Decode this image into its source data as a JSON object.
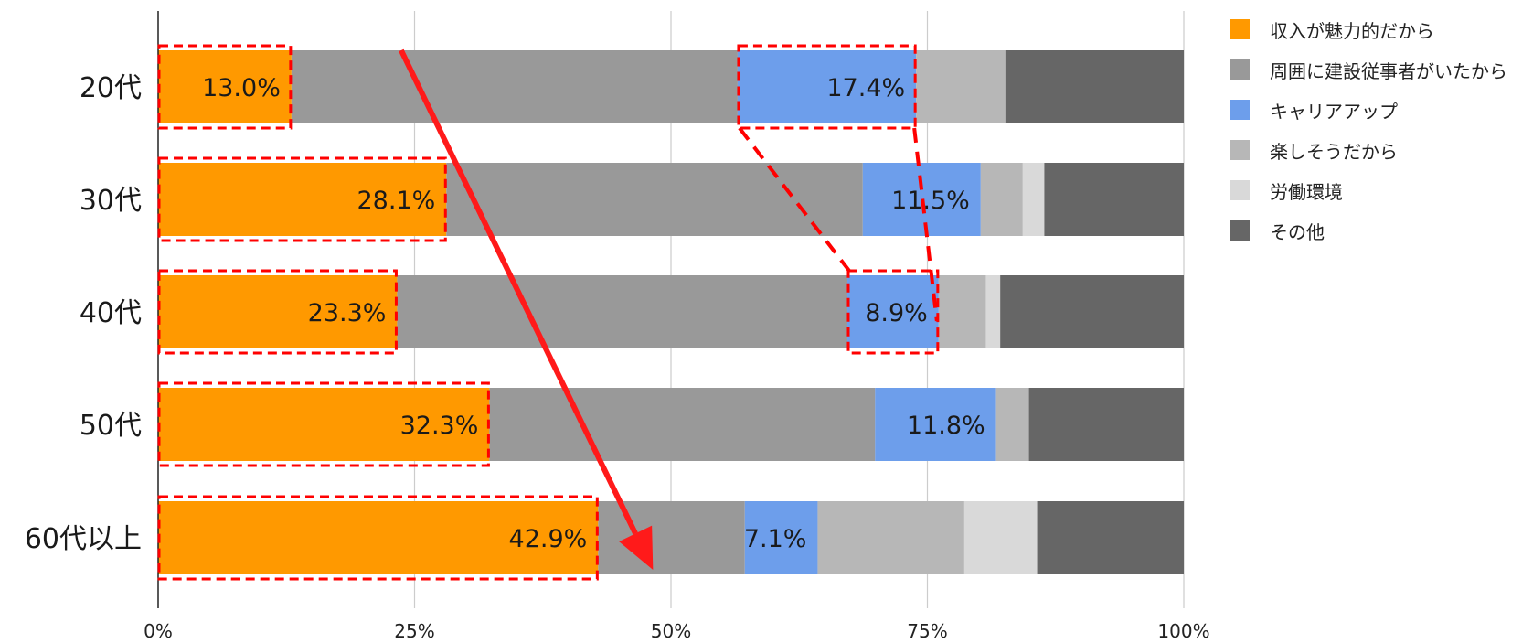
{
  "chart_data": {
    "type": "bar",
    "orientation": "horizontal",
    "stacked": true,
    "stack_normalized": true,
    "categories": [
      "20代",
      "30代",
      "40代",
      "50代",
      "60代以上"
    ],
    "xlim": [
      0,
      100
    ],
    "x_ticks": [
      "0%",
      "25%",
      "50%",
      "75%",
      "100%"
    ],
    "grid": true,
    "legend_position": "right",
    "series": [
      {
        "name": "収入が魅力的だから",
        "color": "#ff9900",
        "values": [
          13.0,
          28.1,
          23.3,
          32.3,
          42.9
        ],
        "labels": [
          "13.0%",
          "28.1%",
          "23.3%",
          "32.3%",
          "42.9%"
        ]
      },
      {
        "name": "周囲に建設従事者がいたから",
        "color": "#999999",
        "values": [
          43.5,
          40.6,
          43.9,
          37.6,
          14.3
        ]
      },
      {
        "name": "キャリアアップ",
        "color": "#6d9eeb",
        "values": [
          17.4,
          11.5,
          8.9,
          11.8,
          7.1
        ],
        "labels": [
          "17.4%",
          "11.5%",
          "8.9%",
          "11.8%",
          "7.1%"
        ]
      },
      {
        "name": "楽しそうだから",
        "color": "#b7b7b7",
        "values": [
          8.7,
          4.1,
          4.6,
          3.2,
          14.3
        ]
      },
      {
        "name": "労働環境",
        "color": "#d9d9d9",
        "values": [
          0,
          2.1,
          1.4,
          0,
          7.1
        ]
      },
      {
        "name": "その他",
        "color": "#666666",
        "values": [
          17.4,
          13.6,
          17.9,
          15.1,
          14.3
        ]
      }
    ],
    "annotations": {
      "highlight_color": "#ff0000",
      "highlighted_segments": [
        {
          "series": "収入が魅力的だから",
          "categories": [
            "20代",
            "30代",
            "40代",
            "50代",
            "60代以上"
          ]
        },
        {
          "series": "キャリアアップ",
          "categories": [
            "20代",
            "40代"
          ]
        }
      ],
      "trend_arrow": {
        "from_category": "20代",
        "to_category": "60代以上",
        "series": "収入が魅力的だから"
      },
      "connector": {
        "series": "キャリアアップ",
        "from_category": "20代",
        "to_category": "40代"
      }
    }
  }
}
